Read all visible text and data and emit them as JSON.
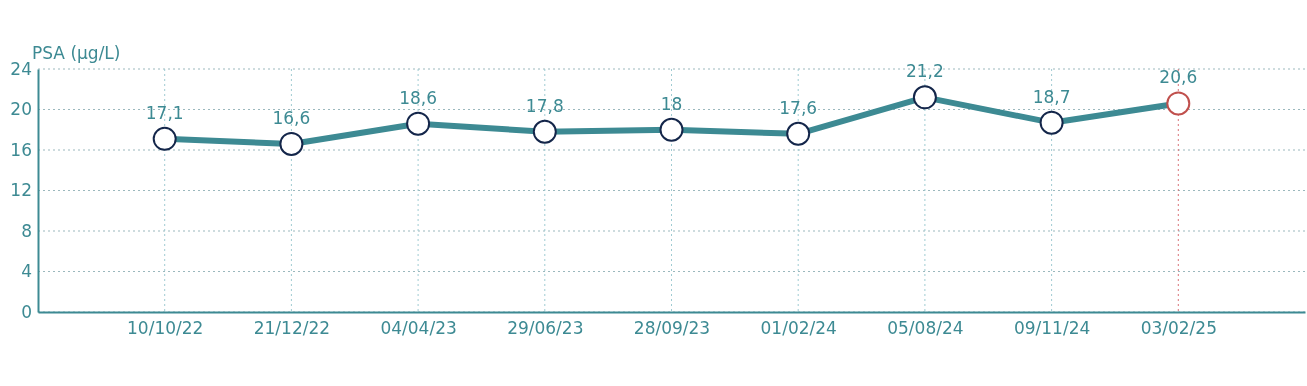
{
  "chart_data": {
    "type": "line",
    "ylabel": "PSA (µg/L)",
    "categories": [
      "10/10/22",
      "21/12/22",
      "04/04/23",
      "29/06/23",
      "28/09/23",
      "01/02/24",
      "05/08/24",
      "09/11/24",
      "03/02/25"
    ],
    "series": [
      {
        "color": "#3d8a93",
        "values": [
          17.1,
          16.6,
          18.6,
          17.8,
          18,
          17.6,
          21.2,
          18.7,
          20.6
        ],
        "colors": [
          "#14264a",
          "#14264a",
          "#14264a",
          "#14264a",
          "#14264a",
          "#14264a",
          "#14264a",
          "#14264a",
          "#c0504d"
        ],
        "value_labels": [
          "17,1",
          "16,6",
          "18,6",
          "17,8",
          "18",
          "17,6",
          "21,2",
          "18,7",
          "20,6"
        ]
      }
    ],
    "ylim": [
      0,
      24
    ],
    "yticks": [
      0,
      4,
      8,
      12,
      16,
      20,
      24
    ],
    "grid": true,
    "marker": "circle",
    "line_style": "solid",
    "ref_lines": [
      {
        "axis": "x",
        "value": "03/02/25",
        "color": "#d9737a",
        "line_style": "dotted"
      }
    ]
  }
}
